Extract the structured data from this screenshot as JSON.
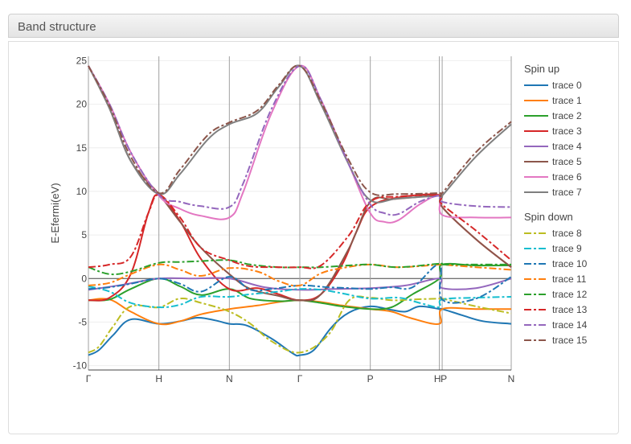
{
  "panel": {
    "title": "Band structure"
  },
  "chart_data": {
    "type": "line",
    "title": "",
    "xlabel": "",
    "ylabel": "E-Efermi(eV)",
    "ylim": [
      -10.5,
      25.5
    ],
    "yticks": [
      -10,
      -5,
      0,
      5,
      10,
      15,
      20,
      25
    ],
    "x_ticks": [
      {
        "label": "Γ",
        "x": 0
      },
      {
        "label": "H",
        "x": 1
      },
      {
        "label": "N",
        "x": 2
      },
      {
        "label": "Γ",
        "x": 3
      },
      {
        "label": "P",
        "x": 4
      },
      {
        "label": "H",
        "x": 4.98
      },
      {
        "label": "P",
        "x": 5.02
      },
      {
        "label": "N",
        "x": 6
      }
    ],
    "xlim": [
      0,
      6
    ],
    "grid": true,
    "legend_position": "right",
    "legend_groups": [
      "Spin up",
      "Spin down"
    ],
    "series": [
      {
        "name": "trace 0",
        "group": "Spin up",
        "color": "#1f77b4",
        "dash": "solid",
        "x": [
          0,
          0.15,
          0.35,
          0.6,
          1,
          1.3,
          1.55,
          1.8,
          2,
          2.25,
          2.6,
          2.9,
          3,
          3.2,
          3.45,
          3.7,
          4,
          4.3,
          4.5,
          4.7,
          4.98,
          5.02,
          5.3,
          5.6,
          6
        ],
        "y": [
          -8.8,
          -8.2,
          -6.5,
          -4.7,
          -5.2,
          -4.9,
          -4.5,
          -4.8,
          -5.2,
          -5.4,
          -6.9,
          -8.6,
          -8.8,
          -8.2,
          -5.6,
          -3.9,
          -3.2,
          -3.6,
          -3.8,
          -3.2,
          -3.5,
          -3.5,
          -4.2,
          -4.9,
          -5.2
        ]
      },
      {
        "name": "trace 1",
        "group": "Spin up",
        "color": "#ff7f0e",
        "dash": "solid",
        "x": [
          0,
          0.3,
          0.6,
          1,
          1.3,
          1.6,
          2,
          2.4,
          2.7,
          3,
          3.3,
          3.6,
          4,
          4.3,
          4.6,
          4.98,
          5.02,
          5.5,
          6
        ],
        "y": [
          -2.5,
          -2.4,
          -3.8,
          -5.2,
          -4.9,
          -4.1,
          -3.5,
          -3.1,
          -2.7,
          -2.5,
          -2.7,
          -3.1,
          -3.5,
          -3.8,
          -4.6,
          -5.2,
          -3.5,
          -3.5,
          -3.5
        ]
      },
      {
        "name": "trace 2",
        "group": "Spin up",
        "color": "#2ca02c",
        "dash": "solid",
        "x": [
          0,
          0.3,
          0.6,
          1,
          1.3,
          1.6,
          2,
          2.3,
          2.7,
          3,
          3.3,
          3.6,
          4,
          4.3,
          4.6,
          4.98,
          5.02,
          5.5,
          6
        ],
        "y": [
          -2.5,
          -2.4,
          -1.2,
          0,
          -0.9,
          -1.9,
          -1.2,
          -2.3,
          -2.6,
          -2.5,
          -2.8,
          -3.2,
          -3.5,
          -3.3,
          -1.8,
          0,
          1.6,
          1.5,
          1.5
        ]
      },
      {
        "name": "trace 3",
        "group": "Spin up",
        "color": "#d62728",
        "dash": "solid",
        "x": [
          0,
          0.3,
          0.6,
          0.85,
          1,
          1.3,
          1.6,
          2,
          2.4,
          2.7,
          3,
          3.3,
          3.6,
          3.8,
          4,
          4.4,
          4.98,
          5.02,
          5.5,
          6
        ],
        "y": [
          -2.5,
          -2.2,
          0.5,
          7.5,
          9.6,
          6.6,
          2.2,
          -1.2,
          -1.1,
          -1.8,
          -2.5,
          -1.8,
          1.6,
          5.3,
          8.2,
          9.3,
          9.6,
          8.2,
          4.5,
          1.3
        ]
      },
      {
        "name": "trace 4",
        "group": "Spin up",
        "color": "#9467bd",
        "dash": "solid",
        "x": [
          0,
          0.5,
          1,
          1.5,
          2,
          2.5,
          3,
          3.5,
          4,
          4.5,
          4.98,
          5.02,
          5.5,
          6
        ],
        "y": [
          -1.3,
          -0.7,
          0,
          0,
          0,
          -1.0,
          -1.3,
          -1.2,
          -1.1,
          -0.8,
          0,
          -1.1,
          -1.1,
          0
        ]
      },
      {
        "name": "trace 5",
        "group": "Spin up",
        "color": "#8c564b",
        "dash": "solid",
        "x": [
          0,
          0.3,
          0.6,
          1,
          1.3,
          1.6,
          2,
          2.3,
          2.7,
          3,
          3.3,
          3.7,
          4,
          4.3,
          4.6,
          4.98,
          5.02,
          5.5,
          6
        ],
        "y": [
          24.4,
          19.5,
          13.5,
          9.7,
          6.5,
          3.5,
          0.5,
          -1.2,
          -2.0,
          -2.5,
          -1.8,
          3.5,
          8.8,
          9.1,
          9.3,
          9.5,
          8.2,
          4.5,
          1.3
        ]
      },
      {
        "name": "trace 6",
        "group": "Spin up",
        "color": "#e377c2",
        "dash": "solid",
        "x": [
          0,
          0.3,
          0.6,
          1,
          1.3,
          1.6,
          2,
          2.2,
          2.6,
          3,
          3.3,
          3.7,
          4,
          4.2,
          4.4,
          4.7,
          4.98,
          5.02,
          5.5,
          6
        ],
        "y": [
          24.4,
          20.0,
          14.5,
          9.5,
          8.0,
          7.2,
          7.0,
          10.0,
          19.0,
          24.4,
          20.5,
          13.0,
          7.5,
          6.5,
          6.7,
          8.5,
          9.5,
          7.3,
          7.0,
          7.0
        ]
      },
      {
        "name": "trace 7",
        "group": "Spin up",
        "color": "#7f7f7f",
        "dash": "solid",
        "x": [
          0,
          0.3,
          0.6,
          1,
          1.3,
          1.7,
          2,
          2.4,
          2.7,
          3,
          3.3,
          3.7,
          4,
          4.4,
          4.98,
          5.02,
          5.5,
          6
        ],
        "y": [
          24.4,
          19.5,
          13.5,
          9.7,
          12.0,
          16.0,
          17.7,
          19.0,
          22.0,
          24.4,
          20.0,
          13.0,
          9.0,
          9.2,
          9.5,
          9.5,
          14.0,
          17.7
        ]
      },
      {
        "name": "trace 8",
        "group": "Spin down",
        "color": "#bcbd22",
        "dash": "dashdot",
        "x": [
          0,
          0.15,
          0.35,
          0.6,
          1,
          1.3,
          1.6,
          2,
          2.3,
          2.6,
          3,
          3.4,
          3.7,
          4,
          4.3,
          4.6,
          4.98,
          5.02,
          5.5,
          6
        ],
        "y": [
          -8.5,
          -7.8,
          -5.5,
          -3.2,
          -3.3,
          -2.3,
          -2.8,
          -3.8,
          -5.2,
          -7.2,
          -8.5,
          -6.5,
          -2.5,
          -2.2,
          -2.5,
          -2.4,
          -2.3,
          -2.3,
          -3.2,
          -4.0
        ]
      },
      {
        "name": "trace 9",
        "group": "Spin down",
        "color": "#17becf",
        "dash": "dashdot",
        "x": [
          0,
          0.3,
          0.6,
          1,
          1.3,
          1.6,
          2,
          2.3,
          2.7,
          3,
          3.3,
          3.6,
          4,
          4.4,
          4.7,
          4.98,
          5.02,
          5.5,
          6
        ],
        "y": [
          -0.9,
          -1.5,
          -2.8,
          -3.3,
          -3.0,
          -2.1,
          -2.1,
          -1.8,
          -1.5,
          -1.2,
          -1.3,
          -1.7,
          -2.3,
          -2.2,
          -2.8,
          -3.3,
          -2.4,
          -2.2,
          -2.1
        ]
      },
      {
        "name": "trace 10",
        "group": "Spin down",
        "color": "#1f77b4",
        "dash": "dashdot",
        "x": [
          0,
          0.3,
          0.6,
          1,
          1.3,
          1.6,
          2,
          2.3,
          2.6,
          3,
          3.4,
          3.7,
          4,
          4.3,
          4.6,
          4.98,
          5.02,
          5.5,
          6
        ],
        "y": [
          -1.2,
          -1.0,
          -0.6,
          0,
          -0.6,
          -1.5,
          0.2,
          -1.3,
          -1.2,
          -0.8,
          -1.0,
          -1.1,
          -1.2,
          -1.0,
          -1.0,
          1.6,
          -2.4,
          -2.3,
          0.2
        ]
      },
      {
        "name": "trace 11",
        "group": "Spin down",
        "color": "#ff7f0e",
        "dash": "dashdot",
        "x": [
          0,
          0.3,
          0.6,
          1,
          1.3,
          1.6,
          2,
          2.4,
          2.7,
          3,
          3.3,
          3.6,
          4,
          4.4,
          4.98,
          5.02,
          5.5,
          6
        ],
        "y": [
          -0.8,
          -0.5,
          0.5,
          1.6,
          1.0,
          0.3,
          1.2,
          0.8,
          -0.3,
          -0.8,
          0.6,
          1.2,
          1.6,
          1.3,
          1.6,
          1.6,
          1.3,
          1.0
        ]
      },
      {
        "name": "trace 12",
        "group": "Spin down",
        "color": "#2ca02c",
        "dash": "dashdot",
        "x": [
          0,
          0.3,
          0.6,
          1,
          1.3,
          1.6,
          2,
          2.3,
          2.7,
          3,
          3.3,
          3.7,
          4,
          4.4,
          4.98,
          5.02,
          5.5,
          6
        ],
        "y": [
          1.3,
          0.5,
          0.8,
          1.8,
          1.9,
          2.0,
          2.1,
          1.6,
          1.3,
          1.3,
          1.3,
          1.5,
          1.6,
          1.3,
          1.7,
          1.6,
          1.6,
          1.6
        ]
      },
      {
        "name": "trace 13",
        "group": "Spin down",
        "color": "#d62728",
        "dash": "dashdot",
        "x": [
          0,
          0.3,
          0.6,
          0.85,
          1,
          1.3,
          1.6,
          2,
          2.3,
          2.7,
          3,
          3.3,
          3.7,
          4,
          4.4,
          4.98,
          5.02,
          5.5,
          6
        ],
        "y": [
          1.3,
          1.6,
          2.5,
          7.5,
          9.6,
          7.0,
          3.5,
          2.1,
          1.4,
          1.3,
          1.3,
          1.5,
          5.0,
          8.8,
          9.4,
          9.5,
          8.5,
          5.5,
          2.1
        ]
      },
      {
        "name": "trace 14",
        "group": "Spin down",
        "color": "#9467bd",
        "dash": "dashdot",
        "x": [
          0,
          0.3,
          0.6,
          1,
          1.3,
          1.6,
          2,
          2.2,
          2.6,
          3,
          3.3,
          3.7,
          4,
          4.2,
          4.4,
          4.7,
          4.98,
          5.02,
          5.5,
          6
        ],
        "y": [
          24.4,
          20.0,
          14.5,
          9.6,
          8.8,
          8.3,
          8.2,
          11.0,
          19.5,
          24.4,
          20.5,
          13.0,
          8.5,
          7.5,
          7.4,
          8.8,
          9.5,
          8.8,
          8.3,
          8.2
        ]
      },
      {
        "name": "trace 15",
        "group": "Spin down",
        "color": "#8c564b",
        "dash": "dashdot",
        "x": [
          0,
          0.3,
          0.6,
          1,
          1.3,
          1.7,
          2,
          2.4,
          2.7,
          3,
          3.3,
          3.7,
          4,
          4.4,
          4.98,
          5.02,
          5.5,
          6
        ],
        "y": [
          24.4,
          19.8,
          14.0,
          9.8,
          12.5,
          16.5,
          17.9,
          19.3,
          22.2,
          24.4,
          20.3,
          13.5,
          9.9,
          9.7,
          9.8,
          9.8,
          14.5,
          18.0
        ]
      }
    ]
  }
}
